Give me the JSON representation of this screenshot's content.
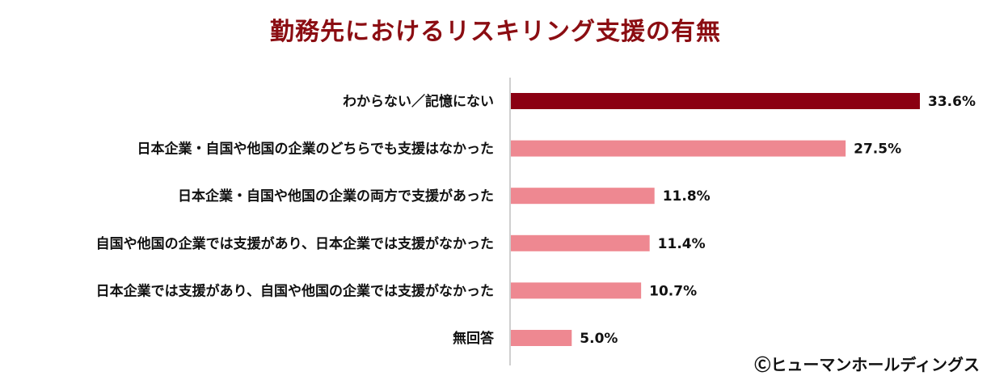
{
  "chart_data": {
    "type": "bar",
    "orientation": "horizontal",
    "title": "勤務先におけるリスキリング支援の有無",
    "categories": [
      "わからない／記憶にない",
      "日本企業・自国や他国の企業のどちらでも支援はなかった",
      "日本企業・自国や他国の企業の両方で支援があった",
      "自国や他国の企業では支援があり、日本企業では支援がなかった",
      "日本企業では支援があり、自国や他国の企業では支援がなかった",
      "無回答"
    ],
    "values": [
      33.6,
      27.5,
      11.8,
      11.4,
      10.7,
      5.0
    ],
    "value_labels": [
      "33.6%",
      "27.5%",
      "11.8%",
      "11.4%",
      "10.7%",
      "5.0%"
    ],
    "unit": "%",
    "xlim": [
      0,
      40
    ],
    "grid": false,
    "legend": "none",
    "colors": {
      "highlight": "#8b0012",
      "default": "#ee8891",
      "axis": "#bfbfbf",
      "title": "#8b0d12"
    }
  },
  "credit": "Ⓒヒューマンホールディングス"
}
